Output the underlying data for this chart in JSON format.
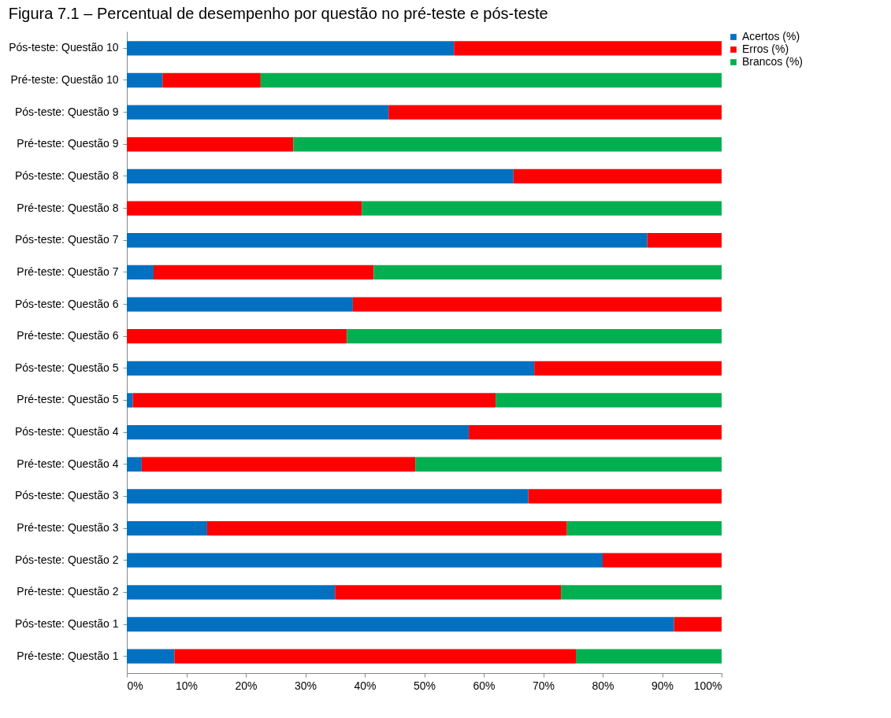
{
  "chart_data": {
    "type": "bar",
    "orientation": "horizontal",
    "stacked": true,
    "title": "Figura 7.1 – Percentual de desempenho por questão no pré-teste e pós-teste",
    "categories": [
      "Pós-teste: Questão 10",
      "Pré-teste: Questão 10",
      "Pós-teste: Questão 9",
      "Pré-teste: Questão 9",
      "Pós-teste: Questão 8",
      "Pré-teste: Questão 8",
      "Pós-teste: Questão 7",
      "Pré-teste: Questão 7",
      "Pós-teste: Questão 6",
      "Pré-teste: Questão 6",
      "Pós-teste: Questão 5",
      "Pré-teste: Questão 5",
      "Pós-teste: Questão 4",
      "Pré-teste: Questão 4",
      "Pós-teste: Questão 3",
      "Pré-teste: Questão 3",
      "Pós-teste: Questão 2",
      "Pré-teste: Questão 2",
      "Pós-teste: Questão 1",
      "Pré-teste: Questão 1"
    ],
    "series": [
      {
        "name": "Acertos (%)",
        "color": "#0070c0",
        "values": [
          55,
          6,
          44,
          0,
          65,
          0,
          87.5,
          4.5,
          38,
          0,
          68.5,
          1,
          57.5,
          2.5,
          67.5,
          13.5,
          80,
          35,
          92,
          8
        ]
      },
      {
        "name": "Erros (%)",
        "color": "#ff0000",
        "values": [
          45,
          16.5,
          56,
          28,
          35,
          39.5,
          12.5,
          37,
          62,
          37,
          31.5,
          61,
          42.5,
          46,
          32.5,
          60.5,
          20,
          38,
          8,
          67.5
        ]
      },
      {
        "name": "Brancos (%)",
        "color": "#00b050",
        "values": [
          0,
          77.5,
          0,
          72,
          0,
          60.5,
          0,
          58.5,
          0,
          63,
          0,
          38,
          0,
          51.5,
          0,
          26,
          0,
          27,
          0,
          24.5
        ]
      }
    ],
    "xlim": [
      0,
      100
    ],
    "xticks": [
      {
        "value": 0,
        "label": "0%"
      },
      {
        "value": 10,
        "label": "10%"
      },
      {
        "value": 20,
        "label": "20%"
      },
      {
        "value": 30,
        "label": "30%"
      },
      {
        "value": 40,
        "label": "40%"
      },
      {
        "value": 50,
        "label": "50%"
      },
      {
        "value": 60,
        "label": "60%"
      },
      {
        "value": 70,
        "label": "70%"
      },
      {
        "value": 80,
        "label": "80%"
      },
      {
        "value": 90,
        "label": "90%"
      },
      {
        "value": 100,
        "label": "100%"
      }
    ],
    "grid": false,
    "legend": "right"
  }
}
